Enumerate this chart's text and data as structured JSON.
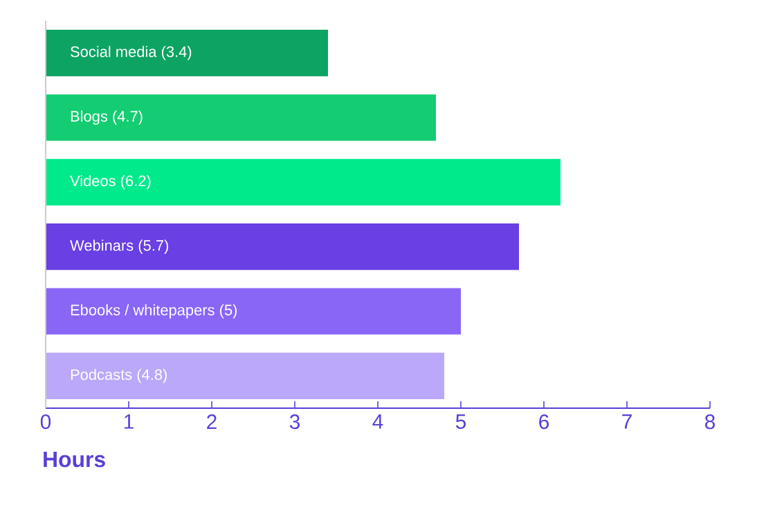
{
  "chart_data": {
    "type": "bar",
    "orientation": "horizontal",
    "xlabel": "Hours",
    "categories": [
      "Social media (3.4)",
      "Blogs (4.7)",
      "Videos (6.2)",
      "Webinars (5.7)",
      "Ebooks / whitepapers (5)",
      "Podcasts (4.8)"
    ],
    "values": [
      3.4,
      4.7,
      6.2,
      5.7,
      5,
      4.8
    ],
    "colors": [
      "#0da463",
      "#14cc72",
      "#00ea8c",
      "#6a3fe3",
      "#8a66f6",
      "#bba8fa"
    ],
    "xlim": [
      0,
      8
    ],
    "xticks": [
      0,
      1,
      2,
      3,
      4,
      5,
      6,
      7,
      8
    ]
  }
}
